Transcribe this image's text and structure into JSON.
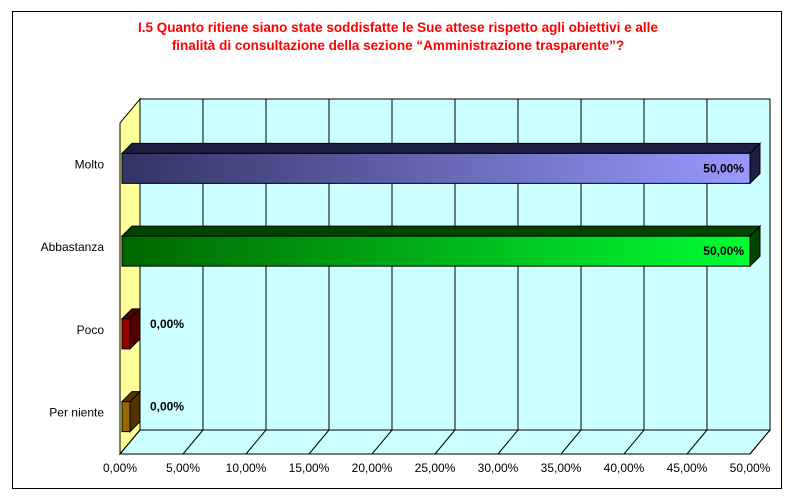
{
  "chart_data": {
    "type": "bar",
    "orientation": "horizontal",
    "title_lines": [
      "I.5 Quanto ritiene siano state soddisfatte le Sue attese rispetto agli obiettivi e alle",
      "finalità di consultazione della sezione “Amministrazione trasparente”?"
    ],
    "categories": [
      "Molto",
      "Abbastanza",
      "Poco",
      "Per niente"
    ],
    "values": [
      50,
      50,
      0,
      0
    ],
    "data_labels": [
      "50,00%",
      "50,00%",
      "0,00%",
      "0,00%"
    ],
    "xlim": [
      0,
      50
    ],
    "x_ticks": [
      0,
      5,
      10,
      15,
      20,
      25,
      30,
      35,
      40,
      45,
      50
    ],
    "x_tick_labels": [
      "0,00%",
      "5,00%",
      "10,00%",
      "15,00%",
      "20,00%",
      "25,00%",
      "30,00%",
      "35,00%",
      "40,00%",
      "45,00%",
      "50,00%"
    ],
    "xlabel": "",
    "ylabel": "",
    "grid": true,
    "legend": "none",
    "colors": {
      "title": "#ff0000",
      "back_wall": "#ccffff",
      "side_wall": "#ffff99",
      "floor": "#ccffff",
      "bars": [
        {
          "start": "#333366",
          "end": "#9999ff",
          "dark": "#1f1f44"
        },
        {
          "start": "#006600",
          "end": "#00ff33",
          "dark": "#004400"
        },
        {
          "start": "#990000",
          "end": "#990000",
          "dark": "#550000"
        },
        {
          "start": "#996600",
          "end": "#996600",
          "dark": "#553300"
        }
      ]
    }
  }
}
